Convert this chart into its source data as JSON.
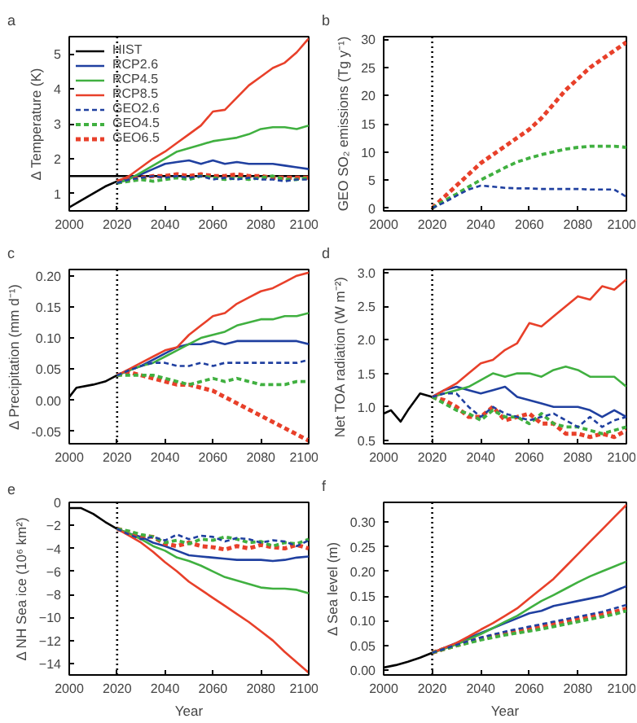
{
  "chart_data": [
    {
      "type": "line",
      "title": "a",
      "ylabel": "Δ Temperature (K)",
      "xlim": [
        2000,
        2100
      ],
      "xticks": [
        2000,
        2020,
        2040,
        2060,
        2080,
        2100
      ],
      "ylim": [
        0.5,
        5.5
      ],
      "yticks": [
        1,
        2,
        3,
        4,
        5
      ],
      "grid": false,
      "legend": "top left",
      "marker": "none",
      "x": [
        2020,
        2025,
        2030,
        2035,
        2040,
        2045,
        2050,
        2055,
        2060,
        2065,
        2070,
        2075,
        2080,
        2085,
        2090,
        2095,
        2100
      ],
      "ref_lines": [
        {
          "axis": "x",
          "value": 2020,
          "color": "#000000",
          "line_style": "dotted"
        },
        {
          "axis": "y",
          "value": 1.5,
          "color": "#000000",
          "line_style": "solid"
        }
      ],
      "series": [
        {
          "name": "HIST",
          "color": "#000000",
          "line_style": "solid",
          "x": [
            2000,
            2005,
            2010,
            2015,
            2020
          ],
          "values": [
            0.6,
            0.8,
            1.0,
            1.2,
            1.35
          ]
        },
        {
          "name": "RCP2.6",
          "color": "#2040a0",
          "line_style": "solid",
          "values": [
            1.35,
            1.45,
            1.55,
            1.7,
            1.85,
            1.9,
            1.95,
            1.85,
            1.95,
            1.85,
            1.9,
            1.85,
            1.85,
            1.85,
            1.8,
            1.75,
            1.7
          ]
        },
        {
          "name": "RCP4.5",
          "color": "#40b040",
          "line_style": "solid",
          "values": [
            1.3,
            1.4,
            1.6,
            1.8,
            2.0,
            2.2,
            2.3,
            2.4,
            2.5,
            2.55,
            2.6,
            2.7,
            2.85,
            2.9,
            2.9,
            2.85,
            2.95
          ]
        },
        {
          "name": "RCP8.5",
          "color": "#e8402a",
          "line_style": "solid",
          "values": [
            1.35,
            1.5,
            1.75,
            2.0,
            2.2,
            2.45,
            2.7,
            2.95,
            3.35,
            3.4,
            3.75,
            4.1,
            4.35,
            4.6,
            4.75,
            5.05,
            5.45
          ]
        },
        {
          "name": "GEO2.6",
          "color": "#2040a0",
          "line_style": "dashed",
          "values": [
            1.3,
            1.4,
            1.45,
            1.5,
            1.45,
            1.5,
            1.45,
            1.5,
            1.4,
            1.45,
            1.4,
            1.45,
            1.4,
            1.4,
            1.35,
            1.4,
            1.4
          ]
        },
        {
          "name": "GEO4.5",
          "color": "#40b040",
          "line_style": "dashed",
          "values": [
            1.3,
            1.35,
            1.4,
            1.35,
            1.4,
            1.45,
            1.4,
            1.5,
            1.45,
            1.4,
            1.45,
            1.4,
            1.45,
            1.5,
            1.4,
            1.4,
            1.45
          ]
        },
        {
          "name": "GEO6.5",
          "color": "#e8402a",
          "line_style": "dashed",
          "values": [
            1.35,
            1.4,
            1.45,
            1.5,
            1.5,
            1.55,
            1.5,
            1.55,
            1.5,
            1.5,
            1.55,
            1.5,
            1.5,
            1.45,
            1.45,
            1.45,
            1.45
          ]
        }
      ]
    },
    {
      "type": "line",
      "title": "b",
      "ylabel": "GEO SO₂ emissions (Tg y⁻¹)",
      "xlim": [
        2000,
        2100
      ],
      "xticks": [
        2000,
        2020,
        2040,
        2060,
        2080,
        2100
      ],
      "ylim": [
        -0.5,
        30.5
      ],
      "yticks": [
        0,
        5,
        10,
        15,
        20,
        25,
        30
      ],
      "grid": false,
      "marker": "none",
      "x": [
        2020,
        2025,
        2030,
        2035,
        2040,
        2045,
        2050,
        2055,
        2060,
        2065,
        2070,
        2075,
        2080,
        2085,
        2090,
        2095,
        2100
      ],
      "ref_lines": [
        {
          "axis": "x",
          "value": 2020,
          "color": "#000000",
          "line_style": "dotted"
        }
      ],
      "series": [
        {
          "color": "#2040a0",
          "line_style": "dashed",
          "values": [
            0,
            1,
            2.2,
            3.3,
            4.0,
            3.8,
            3.6,
            3.5,
            3.5,
            3.4,
            3.4,
            3.4,
            3.4,
            3.3,
            3.3,
            3.3,
            2.0
          ]
        },
        {
          "color": "#40b040",
          "line_style": "dashed",
          "values": [
            0,
            1.3,
            2.5,
            3.8,
            5,
            6.1,
            7.2,
            8.2,
            8.9,
            9.5,
            10,
            10.5,
            10.8,
            11,
            11,
            11,
            10.8
          ]
        },
        {
          "color": "#e8402a",
          "line_style": "dashed",
          "values": [
            0,
            2,
            4,
            6,
            8,
            9.5,
            11,
            12.5,
            14,
            16,
            18.5,
            21,
            23,
            25,
            26.5,
            28,
            29.5
          ]
        }
      ]
    },
    {
      "type": "line",
      "title": "c",
      "ylabel": "Δ Precipitation (mm d⁻¹)",
      "xlim": [
        2000,
        2100
      ],
      "xticks": [
        2000,
        2020,
        2040,
        2060,
        2080,
        2100
      ],
      "ylim": [
        -0.07,
        0.21
      ],
      "yticks": [
        {
          "value": -0.05,
          "label": "-0.05"
        },
        {
          "value": 0,
          "label": "0.00"
        },
        {
          "value": 0.05,
          "label": "0.05"
        },
        {
          "value": 0.1,
          "label": "0.10"
        },
        {
          "value": 0.15,
          "label": "0.15"
        },
        {
          "value": 0.2,
          "label": "0.20"
        }
      ],
      "grid": false,
      "marker": "none",
      "x": [
        2020,
        2025,
        2030,
        2035,
        2040,
        2045,
        2050,
        2055,
        2060,
        2065,
        2070,
        2075,
        2080,
        2085,
        2090,
        2095,
        2100
      ],
      "ref_lines": [
        {
          "axis": "x",
          "value": 2020,
          "color": "#000000",
          "line_style": "dotted"
        }
      ],
      "series": [
        {
          "color": "#000000",
          "line_style": "solid",
          "x": [
            2000,
            2003,
            2010,
            2015,
            2020
          ],
          "values": [
            0.005,
            0.02,
            0.025,
            0.03,
            0.04
          ]
        },
        {
          "color": "#2040a0",
          "line_style": "solid",
          "values": [
            0.04,
            0.048,
            0.055,
            0.065,
            0.075,
            0.085,
            0.09,
            0.09,
            0.095,
            0.09,
            0.095,
            0.095,
            0.095,
            0.095,
            0.095,
            0.095,
            0.09
          ]
        },
        {
          "color": "#40b040",
          "line_style": "solid",
          "values": [
            0.04,
            0.048,
            0.055,
            0.06,
            0.07,
            0.08,
            0.09,
            0.1,
            0.105,
            0.11,
            0.12,
            0.125,
            0.13,
            0.13,
            0.135,
            0.135,
            0.14
          ]
        },
        {
          "color": "#e8402a",
          "line_style": "solid",
          "values": [
            0.04,
            0.05,
            0.06,
            0.07,
            0.08,
            0.085,
            0.105,
            0.12,
            0.135,
            0.14,
            0.155,
            0.165,
            0.175,
            0.18,
            0.19,
            0.2,
            0.205
          ]
        },
        {
          "color": "#2040a0",
          "line_style": "dashed",
          "values": [
            0.04,
            0.048,
            0.055,
            0.06,
            0.06,
            0.055,
            0.055,
            0.06,
            0.055,
            0.06,
            0.06,
            0.06,
            0.06,
            0.06,
            0.06,
            0.06,
            0.065
          ]
        },
        {
          "color": "#40b040",
          "line_style": "dashed",
          "values": [
            0.04,
            0.04,
            0.04,
            0.04,
            0.035,
            0.03,
            0.025,
            0.03,
            0.035,
            0.03,
            0.035,
            0.03,
            0.025,
            0.025,
            0.025,
            0.03,
            0.03
          ]
        },
        {
          "color": "#e8402a",
          "line_style": "dashed",
          "values": [
            0.04,
            0.045,
            0.04,
            0.035,
            0.03,
            0.025,
            0.025,
            0.02,
            0.015,
            0.005,
            -0.005,
            -0.015,
            -0.025,
            -0.035,
            -0.045,
            -0.055,
            -0.065
          ]
        }
      ]
    },
    {
      "type": "line",
      "title": "d",
      "ylabel": "Net TOA radiation (W m⁻²)",
      "xlim": [
        2000,
        2100
      ],
      "xticks": [
        2000,
        2020,
        2040,
        2060,
        2080,
        2100
      ],
      "ylim": [
        0.45,
        3.05
      ],
      "yticks": [
        0.5,
        {
          "value": 1,
          "label": "1.0"
        },
        1.5,
        {
          "value": 2,
          "label": "2.0"
        },
        2.5,
        {
          "value": 3,
          "label": "3.0"
        }
      ],
      "grid": false,
      "marker": "none",
      "x": [
        2020,
        2025,
        2030,
        2035,
        2040,
        2045,
        2050,
        2055,
        2060,
        2065,
        2070,
        2075,
        2080,
        2085,
        2090,
        2095,
        2100
      ],
      "ref_lines": [
        {
          "axis": "x",
          "value": 2020,
          "color": "#000000",
          "line_style": "dotted"
        }
      ],
      "series": [
        {
          "color": "#000000",
          "line_style": "solid",
          "x": [
            2000,
            2003,
            2007,
            2010,
            2015,
            2020
          ],
          "values": [
            0.9,
            0.95,
            0.78,
            0.95,
            1.2,
            1.15
          ]
        },
        {
          "color": "#2040a0",
          "line_style": "solid",
          "values": [
            1.15,
            1.25,
            1.3,
            1.25,
            1.2,
            1.25,
            1.3,
            1.15,
            1.1,
            1.05,
            1.0,
            1.0,
            1.0,
            0.95,
            0.85,
            0.95,
            0.85
          ]
        },
        {
          "color": "#40b040",
          "line_style": "solid",
          "values": [
            1.15,
            1.2,
            1.25,
            1.3,
            1.4,
            1.5,
            1.45,
            1.5,
            1.5,
            1.45,
            1.55,
            1.6,
            1.55,
            1.45,
            1.45,
            1.45,
            1.3
          ]
        },
        {
          "color": "#e8402a",
          "line_style": "solid",
          "values": [
            1.15,
            1.25,
            1.35,
            1.5,
            1.65,
            1.7,
            1.85,
            1.95,
            2.25,
            2.2,
            2.35,
            2.5,
            2.65,
            2.6,
            2.8,
            2.75,
            2.9
          ]
        },
        {
          "color": "#2040a0",
          "line_style": "dashed",
          "values": [
            1.15,
            1.2,
            1.2,
            1.0,
            0.85,
            1.0,
            0.9,
            0.85,
            0.8,
            0.85,
            0.9,
            0.8,
            0.7,
            0.85,
            0.7,
            0.8,
            0.85
          ]
        },
        {
          "color": "#40b040",
          "line_style": "dashed",
          "values": [
            1.15,
            1.05,
            0.95,
            0.9,
            0.8,
            0.95,
            0.85,
            0.85,
            0.75,
            0.9,
            0.75,
            0.7,
            0.7,
            0.65,
            0.6,
            0.65,
            0.7
          ]
        },
        {
          "color": "#e8402a",
          "line_style": "dashed",
          "values": [
            1.15,
            1.1,
            1.0,
            0.85,
            0.85,
            1.0,
            0.8,
            0.85,
            0.9,
            0.75,
            0.75,
            0.6,
            0.6,
            0.55,
            0.6,
            0.55,
            0.65
          ]
        }
      ]
    },
    {
      "type": "line",
      "title": "e",
      "xlabel": "Year",
      "ylabel": "Δ NH Sea ice (10⁶ km²)",
      "xlim": [
        2000,
        2100
      ],
      "xticks": [
        2000,
        2020,
        2040,
        2060,
        2080,
        2100
      ],
      "ylim": [
        -15,
        0
      ],
      "yticks": [
        -14,
        -12,
        -10,
        -8,
        -6,
        -4,
        -2,
        0
      ],
      "grid": false,
      "marker": "none",
      "x": [
        2020,
        2025,
        2030,
        2035,
        2040,
        2045,
        2050,
        2055,
        2060,
        2065,
        2070,
        2075,
        2080,
        2085,
        2090,
        2095,
        2100
      ],
      "ref_lines": [
        {
          "axis": "x",
          "value": 2020,
          "color": "#000000",
          "line_style": "dotted"
        }
      ],
      "series": [
        {
          "color": "#000000",
          "line_style": "solid",
          "x": [
            2000,
            2005,
            2010,
            2015,
            2020
          ],
          "values": [
            -0.5,
            -0.5,
            -1.0,
            -1.7,
            -2.3
          ]
        },
        {
          "color": "#2040a0",
          "line_style": "solid",
          "values": [
            -2.3,
            -2.7,
            -3.0,
            -3.5,
            -3.8,
            -4.2,
            -4.6,
            -4.7,
            -4.8,
            -4.9,
            -5.0,
            -5.0,
            -5.0,
            -5.1,
            -5.0,
            -4.8,
            -4.7
          ]
        },
        {
          "color": "#40b040",
          "line_style": "solid",
          "values": [
            -2.3,
            -2.7,
            -3.2,
            -3.8,
            -4.2,
            -4.8,
            -5.1,
            -5.5,
            -6.0,
            -6.5,
            -6.8,
            -7.1,
            -7.4,
            -7.5,
            -7.5,
            -7.6,
            -7.9
          ]
        },
        {
          "color": "#e8402a",
          "line_style": "solid",
          "values": [
            -2.3,
            -2.9,
            -3.5,
            -4.3,
            -5.2,
            -6.0,
            -6.9,
            -7.6,
            -8.3,
            -9.0,
            -9.7,
            -10.4,
            -11.2,
            -12.0,
            -13.0,
            -13.9,
            -14.8
          ]
        },
        {
          "color": "#2040a0",
          "line_style": "dashed",
          "values": [
            -2.3,
            -2.8,
            -3.2,
            -3.0,
            -3.3,
            -2.8,
            -3.2,
            -2.9,
            -3.0,
            -3.4,
            -3.1,
            -3.2,
            -3.5,
            -3.3,
            -3.4,
            -3.8,
            -3.3
          ]
        },
        {
          "color": "#40b040",
          "line_style": "dashed",
          "values": [
            -2.3,
            -2.5,
            -2.8,
            -3.0,
            -3.5,
            -3.3,
            -3.6,
            -3.2,
            -3.3,
            -3.0,
            -3.2,
            -3.5,
            -3.4,
            -3.8,
            -3.5,
            -3.6,
            -3.2
          ]
        },
        {
          "color": "#e8402a",
          "line_style": "dashed",
          "values": [
            -2.3,
            -2.6,
            -2.9,
            -3.0,
            -3.6,
            -3.8,
            -3.5,
            -3.8,
            -3.9,
            -4.1,
            -3.8,
            -4.0,
            -3.7,
            -3.9,
            -4.0,
            -3.7,
            -4.0
          ]
        }
      ]
    },
    {
      "type": "line",
      "title": "f",
      "xlabel": "Year",
      "ylabel": "Δ Sea level (m)",
      "xlim": [
        2000,
        2100
      ],
      "xticks": [
        2000,
        2020,
        2040,
        2060,
        2080,
        2100
      ],
      "ylim": [
        -0.01,
        0.34
      ],
      "yticks": [
        {
          "value": 0,
          "label": "0.00"
        },
        {
          "value": 0.05,
          "label": "0.05"
        },
        {
          "value": 0.1,
          "label": "0.10"
        },
        {
          "value": 0.15,
          "label": "0.15"
        },
        {
          "value": 0.2,
          "label": "0.20"
        },
        {
          "value": 0.25,
          "label": "0.25"
        },
        {
          "value": 0.3,
          "label": "0.30"
        }
      ],
      "grid": false,
      "marker": "none",
      "x": [
        2020,
        2025,
        2030,
        2035,
        2040,
        2045,
        2050,
        2055,
        2060,
        2065,
        2070,
        2075,
        2080,
        2085,
        2090,
        2095,
        2100
      ],
      "ref_lines": [
        {
          "axis": "x",
          "value": 2020,
          "color": "#000000",
          "line_style": "dotted"
        }
      ],
      "series": [
        {
          "color": "#000000",
          "line_style": "solid",
          "x": [
            2000,
            2005,
            2010,
            2015,
            2020
          ],
          "values": [
            0.005,
            0.01,
            0.017,
            0.025,
            0.035
          ]
        },
        {
          "color": "#2040a0",
          "line_style": "solid",
          "values": [
            0.035,
            0.045,
            0.055,
            0.065,
            0.075,
            0.085,
            0.095,
            0.105,
            0.115,
            0.12,
            0.13,
            0.135,
            0.14,
            0.145,
            0.15,
            0.16,
            0.17
          ]
        },
        {
          "color": "#40b040",
          "line_style": "solid",
          "values": [
            0.035,
            0.043,
            0.052,
            0.062,
            0.073,
            0.085,
            0.098,
            0.11,
            0.125,
            0.14,
            0.152,
            0.165,
            0.178,
            0.19,
            0.2,
            0.21,
            0.22
          ]
        },
        {
          "color": "#e8402a",
          "line_style": "solid",
          "values": [
            0.035,
            0.045,
            0.055,
            0.068,
            0.082,
            0.095,
            0.11,
            0.125,
            0.145,
            0.165,
            0.185,
            0.21,
            0.235,
            0.26,
            0.285,
            0.31,
            0.335
          ]
        },
        {
          "color": "#2040a0",
          "line_style": "dashed",
          "values": [
            0.035,
            0.043,
            0.051,
            0.059,
            0.066,
            0.072,
            0.078,
            0.083,
            0.088,
            0.093,
            0.098,
            0.103,
            0.108,
            0.113,
            0.118,
            0.125,
            0.132
          ]
        },
        {
          "color": "#40b040",
          "line_style": "dashed",
          "values": [
            0.035,
            0.042,
            0.049,
            0.055,
            0.061,
            0.066,
            0.071,
            0.075,
            0.079,
            0.083,
            0.088,
            0.093,
            0.098,
            0.103,
            0.108,
            0.113,
            0.12
          ]
        },
        {
          "color": "#e8402a",
          "line_style": "dashed",
          "values": [
            0.035,
            0.043,
            0.05,
            0.057,
            0.064,
            0.069,
            0.074,
            0.078,
            0.083,
            0.088,
            0.093,
            0.098,
            0.103,
            0.108,
            0.113,
            0.118,
            0.124
          ]
        }
      ]
    }
  ]
}
